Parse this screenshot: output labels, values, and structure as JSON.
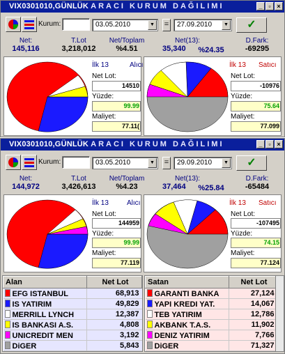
{
  "top": {
    "title": "VIX0301010,GÜNLÜK",
    "subtitle": "ARACI KURUM DAĞILIMI",
    "kurum_label": "Kurum:",
    "kurum_value": "",
    "date_from": "03.05.2010",
    "date_to": "27.09.2010",
    "eq": "=",
    "stats": {
      "net_label": "Net:",
      "net_value": "145,116",
      "tlot_label": "T.Lot",
      "tlot_value": "3,218,012",
      "nettop_label": "Net/Toplam",
      "nettop_value": "%4.51",
      "net13_label": "Net(13):",
      "net13_value": "35,340",
      "pct_value": "%24.35",
      "dfark_label": "D.Fark:",
      "dfark_value": "-69295"
    },
    "left": {
      "ilk": "İlk 13",
      "side": "Alıcı",
      "netlot_label": "Net Lot:",
      "netlot": "14510",
      "yuzde_label": "Yüzde:",
      "yuzde": "99.99",
      "maliyet_label": "Maliyet:",
      "maliyet": "77.11("
    },
    "right": {
      "ilk": "İlk 13",
      "side": "Satıcı",
      "netlot_label": "Net Lot:",
      "netlot": "-10976",
      "yuzde_label": "Yüzde:",
      "yuzde": "75.64",
      "maliyet_label": "Maliyet:",
      "maliyet": "77.099"
    }
  },
  "bottom": {
    "title": "VIX0301010,GÜNLÜK",
    "subtitle": "ARACI KURUM DAĞILIMI",
    "kurum_label": "Kurum:",
    "kurum_value": "",
    "date_from": "03.05.2010",
    "date_to": "29.09.2010",
    "eq": "=",
    "stats": {
      "net_label": "Net:",
      "net_value": "144,972",
      "tlot_label": "T.Lot",
      "tlot_value": "3,426,613",
      "nettop_label": "Net/Toplam",
      "nettop_value": "%4.23",
      "net13_label": "Net(13):",
      "net13_value": "37,464",
      "pct_value": "%25.84",
      "dfark_label": "D.Fark:",
      "dfark_value": "-65484"
    },
    "left": {
      "ilk": "İlk 13",
      "side": "Alıcı",
      "netlot_label": "Net Lot:",
      "netlot": "144959",
      "yuzde_label": "Yüzde:",
      "yuzde": "99.99",
      "maliyet_label": "Maliyet:",
      "maliyet": "77.119"
    },
    "right": {
      "ilk": "İlk 13",
      "side": "Satıcı",
      "netlot_label": "Net Lot:",
      "netlot": "-107495",
      "yuzde_label": "Yüzde:",
      "yuzde": "74.15",
      "maliyet_label": "Maliyet:",
      "maliyet": "77.124"
    },
    "alan": {
      "col1": "Alan",
      "col2": "Net Lot",
      "rows": [
        {
          "name": "EFG ISTANBUL",
          "value": "68,913",
          "color": "#ff0000"
        },
        {
          "name": "IS YATIRIM",
          "value": "49,829",
          "color": "#1a1aff"
        },
        {
          "name": "MERRILL LYNCH",
          "value": "12,387",
          "color": "#ffffff"
        },
        {
          "name": "IS BANKASI A.S.",
          "value": "4,808",
          "color": "#ffff00"
        },
        {
          "name": "UNICREDIT MEN",
          "value": "3,192",
          "color": "#ff00ff"
        },
        {
          "name": "DiGER",
          "value": "5,843",
          "color": "#a0a0a0"
        }
      ]
    },
    "satan": {
      "col1": "Satan",
      "col2": "Net Lot",
      "rows": [
        {
          "name": "GARANTI BANKA",
          "value": "27,124",
          "color": "#ff0000"
        },
        {
          "name": "YAPI KREDI YAT.",
          "value": "14,067",
          "color": "#1a1aff"
        },
        {
          "name": "TEB YATIRIM",
          "value": "12,786",
          "color": "#ffffff"
        },
        {
          "name": "AKBANK T.A.S.",
          "value": "11,902",
          "color": "#ffff00"
        },
        {
          "name": "DENIZ YATIRIM",
          "value": "7,766",
          "color": "#ff00ff"
        },
        {
          "name": "DiGER",
          "value": "71,327",
          "color": "#a0a0a0"
        }
      ]
    }
  },
  "colors": {
    "titlebar": "#0a1f9c",
    "panel": "#d4d0c8",
    "alan_row": "#e6e6ff",
    "satan_row": "#ffe6e6"
  }
}
